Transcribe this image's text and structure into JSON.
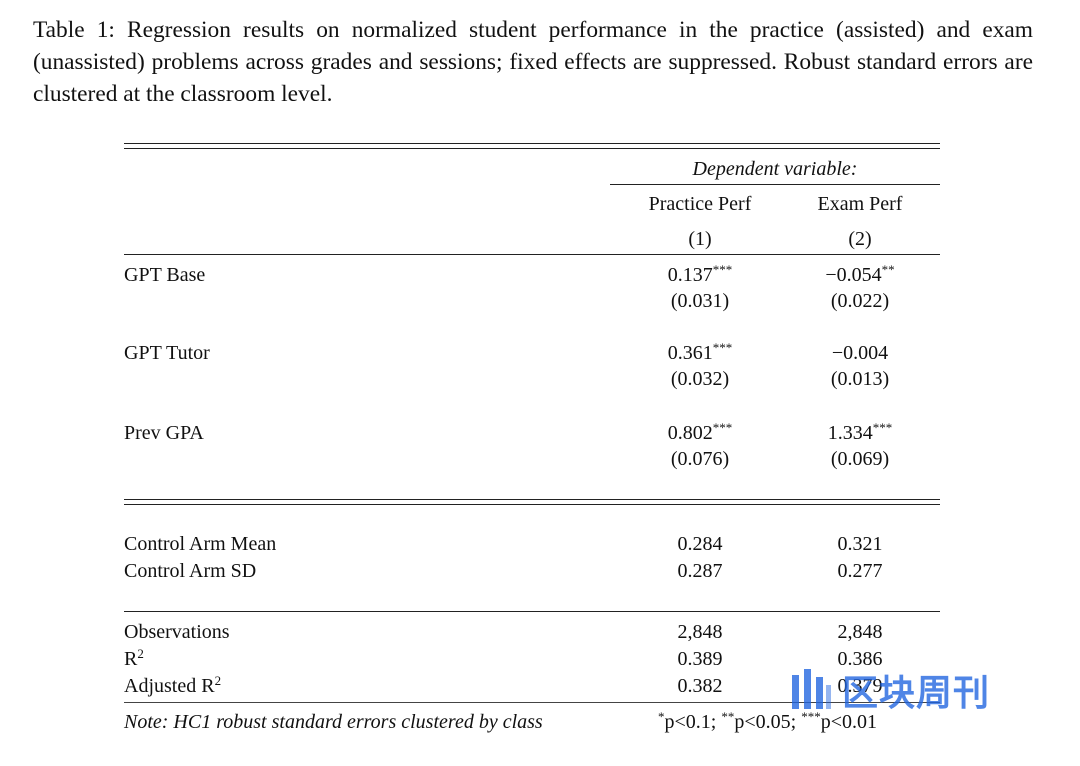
{
  "caption": "Table 1: Regression results on normalized student performance in the practice (assisted) and exam (unassisted) problems across grades and sessions; fixed effects are suppressed. Robust standard errors are clustered at the classroom level.",
  "header": {
    "dependent": "Dependent variable:",
    "col1_name": "Practice Perf",
    "col2_name": "Exam Perf",
    "col1_num": "(1)",
    "col2_num": "(2)"
  },
  "rows": [
    {
      "label": "GPT Base",
      "c1": "0.137",
      "c1_stars": "***",
      "c1_se": "(0.031)",
      "c2": "−0.054",
      "c2_stars": "**",
      "c2_se": "(0.022)"
    },
    {
      "label": "GPT Tutor",
      "c1": "0.361",
      "c1_stars": "***",
      "c1_se": "(0.032)",
      "c2": "−0.004",
      "c2_stars": "",
      "c2_se": "(0.013)"
    },
    {
      "label": "Prev GPA",
      "c1": "0.802",
      "c1_stars": "***",
      "c1_se": "(0.076)",
      "c2": "1.334",
      "c2_stars": "***",
      "c2_se": "(0.069)"
    }
  ],
  "controls": [
    {
      "label": "Control Arm Mean",
      "c1": "0.284",
      "c2": "0.321"
    },
    {
      "label": "Control Arm SD",
      "c1": "0.287",
      "c2": "0.277"
    }
  ],
  "stats": {
    "obs_label": "Observations",
    "obs_c1": "2,848",
    "obs_c2": "2,848",
    "r2_label": "R",
    "r2_sup": "2",
    "r2_c1": "0.389",
    "r2_c2": "0.386",
    "adjr2_label": "Adjusted R",
    "adjr2_sup": "2",
    "adjr2_c1": "0.382",
    "adjr2_c2": "0.379"
  },
  "note": {
    "text": "Note: HC1 robust standard errors clustered by class",
    "sig_p1_stars": "*",
    "sig_p1": "p<0.1; ",
    "sig_p2_stars": "**",
    "sig_p2": "p<0.05; ",
    "sig_p3_stars": "***",
    "sig_p3": "p<0.01"
  },
  "watermark": {
    "text": "区块周刊",
    "color": "#1e63e0"
  }
}
